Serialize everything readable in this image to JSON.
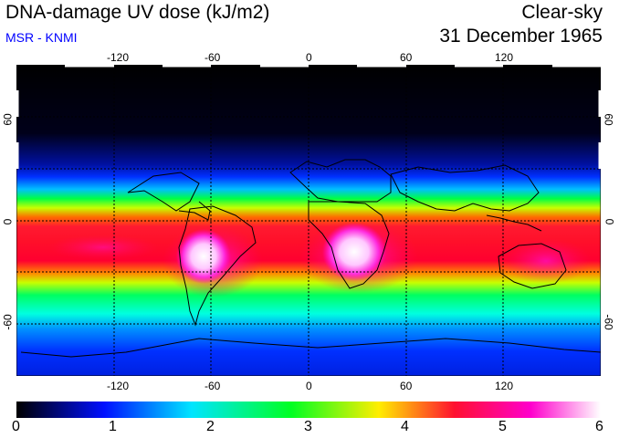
{
  "header": {
    "title": "DNA-damage UV dose (kJ/m2)",
    "credit": "MSR - KNMI",
    "condition": "Clear-sky",
    "date": "31 December 1965"
  },
  "map": {
    "lon_ticks": [
      "-120",
      "-60",
      "0",
      "60",
      "120"
    ],
    "lat_ticks": [
      "60",
      "0",
      "-60"
    ],
    "lon_range": [
      -180,
      180
    ],
    "lat_range": [
      -90,
      90
    ]
  },
  "colorbar": {
    "min": 0,
    "max": 6,
    "labels": [
      "0",
      "1",
      "2",
      "3",
      "4",
      "5",
      "6"
    ],
    "colors": [
      "#000000",
      "#0018ff",
      "#00e5ff",
      "#00ff22",
      "#ffee00",
      "#ff1030",
      "#ff00cc",
      "#ffffff"
    ]
  }
}
